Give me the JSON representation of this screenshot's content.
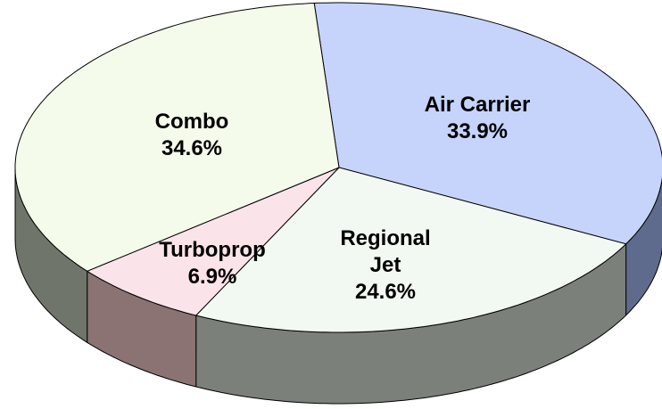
{
  "chart_data": {
    "type": "pie3d",
    "categories": [
      "Air Carrier",
      "Regional Jet",
      "Turboprop",
      "Combo"
    ],
    "values": [
      33.9,
      24.6,
      6.9,
      34.6
    ],
    "value_labels": [
      "33.9%",
      "24.6%",
      "6.9%",
      "34.6%"
    ],
    "colors": [
      "#c6d4fb",
      "#f2f9f2",
      "#fbe3ea",
      "#f5fbea"
    ],
    "side_colors": [
      "#5f6b8c",
      "#7b807b",
      "#8b7373",
      "#70756c"
    ]
  }
}
